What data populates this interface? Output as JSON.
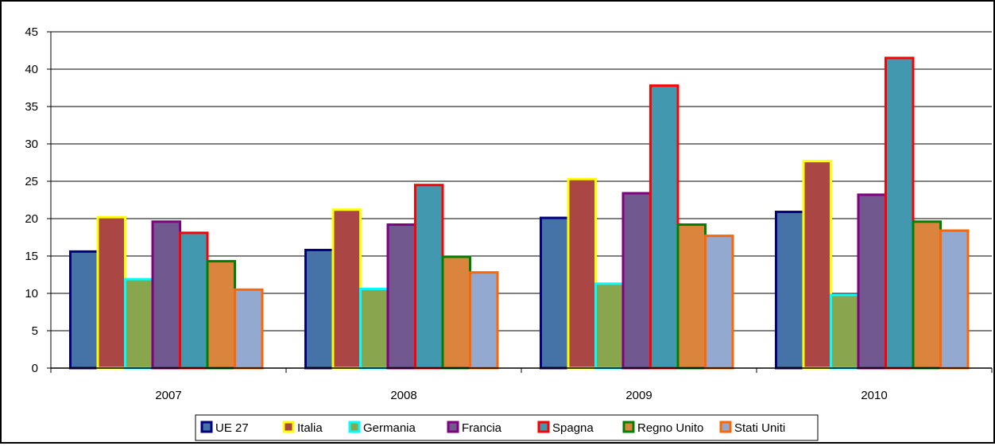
{
  "chart_data": {
    "type": "bar",
    "title": "",
    "xlabel": "",
    "ylabel": "",
    "categories": [
      "2007",
      "2008",
      "2009",
      "2010"
    ],
    "ylim": [
      0,
      45
    ],
    "yticks": [
      "0",
      "5",
      "10",
      "15",
      "20",
      "25",
      "30",
      "35",
      "40",
      "45"
    ],
    "grid": true,
    "legend_position": "bottom",
    "series": [
      {
        "name": "UE 27",
        "values": [
          15.6,
          15.8,
          20.1,
          20.9
        ],
        "fill": "#4572A7",
        "stroke": "#000080"
      },
      {
        "name": "Italia",
        "values": [
          20.2,
          21.2,
          25.3,
          27.7
        ],
        "fill": "#AA4643",
        "stroke": "#FFFF00"
      },
      {
        "name": "Germania",
        "values": [
          11.9,
          10.6,
          11.3,
          9.8
        ],
        "fill": "#89A54E",
        "stroke": "#00FFFF"
      },
      {
        "name": "Francia",
        "values": [
          19.6,
          19.2,
          23.4,
          23.2
        ],
        "fill": "#71588F",
        "stroke": "#800080"
      },
      {
        "name": "Spagna",
        "values": [
          18.1,
          24.5,
          37.8,
          41.5
        ],
        "fill": "#4198AF",
        "stroke": "#FF0000"
      },
      {
        "name": "Regno Unito",
        "values": [
          14.3,
          14.9,
          19.2,
          19.6
        ],
        "fill": "#DB843D",
        "stroke": "#008000"
      },
      {
        "name": "Stati Uniti",
        "values": [
          10.5,
          12.8,
          17.7,
          18.4
        ],
        "fill": "#93A9CF",
        "stroke": "#FF6600"
      }
    ]
  }
}
